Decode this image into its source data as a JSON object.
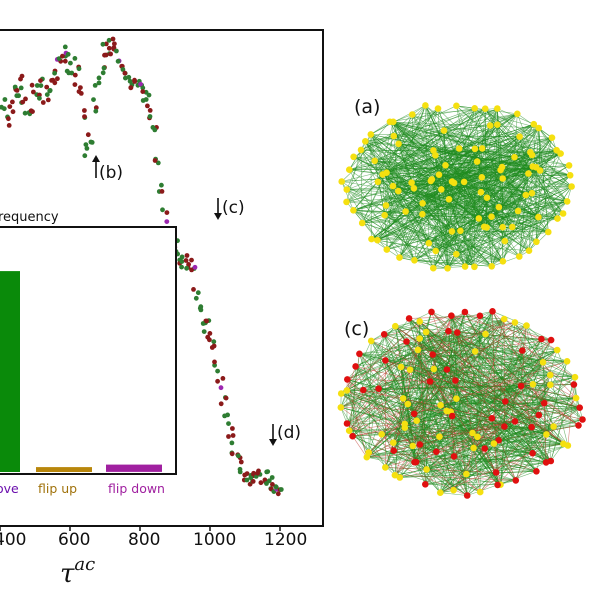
{
  "chart_data": [
    {
      "type": "scatter",
      "xlabel": "τ^ac",
      "xlim": [
        0,
        1250
      ],
      "ylim": [
        0,
        1
      ],
      "xticks": [
        "400",
        "600",
        "800",
        "1000",
        "1200"
      ],
      "annotations": [
        "(b)",
        "(c)",
        "(d)"
      ],
      "series_colors": [
        "#8b1a1a",
        "#2e7d32",
        "#9c27b0"
      ],
      "series": [
        {
          "x": [
            410,
            420,
            430,
            440,
            450,
            460,
            470,
            480,
            490,
            500,
            510,
            520,
            530,
            540,
            550,
            560,
            570,
            580,
            590,
            600,
            610,
            620,
            630,
            640,
            650,
            660,
            670,
            680,
            690,
            700,
            710,
            720,
            730,
            740,
            750,
            760,
            770,
            780,
            790,
            800,
            810,
            820,
            830,
            840,
            850,
            860,
            870,
            880,
            890,
            900,
            910,
            920,
            930,
            940,
            950,
            960,
            970,
            980,
            990,
            1000,
            1010,
            1020,
            1030,
            1040,
            1050,
            1060,
            1070,
            1080,
            1090,
            1100,
            1110,
            1120,
            1130,
            1140,
            1150,
            1160,
            1170,
            1180,
            1190,
            1200
          ],
          "y": [
            0.86,
            0.82,
            0.85,
            0.88,
            0.87,
            0.9,
            0.86,
            0.84,
            0.85,
            0.89,
            0.88,
            0.9,
            0.87,
            0.88,
            0.92,
            0.91,
            0.95,
            0.97,
            0.96,
            0.93,
            0.91,
            0.94,
            0.89,
            0.83,
            0.76,
            0.78,
            0.85,
            0.9,
            0.93,
            0.97,
            0.95,
            0.98,
            0.98,
            0.96,
            0.94,
            0.92,
            0.91,
            0.9,
            0.9,
            0.89,
            0.87,
            0.86,
            0.84,
            0.8,
            0.74,
            0.68,
            0.62,
            0.58,
            0.56,
            0.55,
            0.53,
            0.52,
            0.52,
            0.51,
            0.5,
            0.45,
            0.42,
            0.4,
            0.38,
            0.36,
            0.34,
            0.3,
            0.26,
            0.22,
            0.18,
            0.15,
            0.12,
            0.1,
            0.08,
            0.06,
            0.06,
            0.05,
            0.06,
            0.07,
            0.06,
            0.06,
            0.05,
            0.05,
            0.04,
            0.04
          ]
        }
      ]
    },
    {
      "type": "bar",
      "title": "requency",
      "categories": [
        "ove",
        "flip up",
        "flip down"
      ],
      "values": [
        0.82,
        0.02,
        0.03
      ],
      "ylim": [
        0,
        1
      ],
      "colors": [
        "#0a8a0a",
        "#b8860b",
        "#a020a0"
      ]
    }
  ],
  "panels": {
    "a": {
      "label": "(a)",
      "node_color": "#f5e010",
      "edge_color": "#1f8c1f"
    },
    "c": {
      "label": "(c)",
      "node_colors": [
        "#f5e010",
        "#e01010"
      ],
      "edge_colors": [
        "#1f8c1f",
        "#c0392b"
      ]
    }
  }
}
